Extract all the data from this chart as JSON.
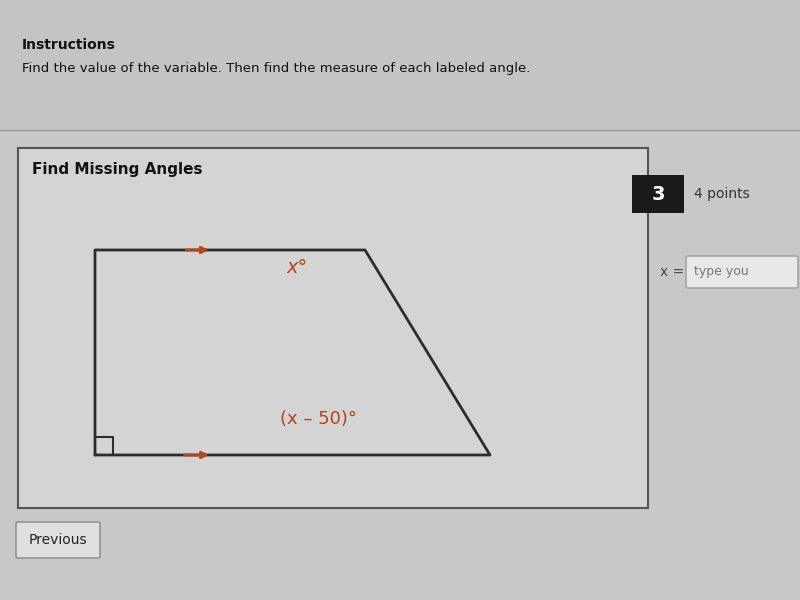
{
  "page_bg": "#c8c8c8",
  "instructions_bold": "Instructions",
  "instructions_text": "Find the value of the variable. Then find the measure of each labeled angle.",
  "section_title": "Find Missing Angles",
  "question_number": "3",
  "points_text": "4 points",
  "x_label": "x =",
  "input_placeholder": "type you",
  "previous_button": "Previous",
  "shape_color": "#b5451b",
  "shape_line_color": "#2c2c2c",
  "angle_label_top": "x°",
  "angle_label_bottom": "(x – 50)°",
  "card_bg": "#d8d8d8",
  "card_border": "#555555",
  "number_box_bg": "#1a1a1a",
  "number_box_fg": "#ffffff",
  "top_strip_bg": "#c0c0c0",
  "input_bg": "#e8e8e8",
  "input_border": "#999999"
}
